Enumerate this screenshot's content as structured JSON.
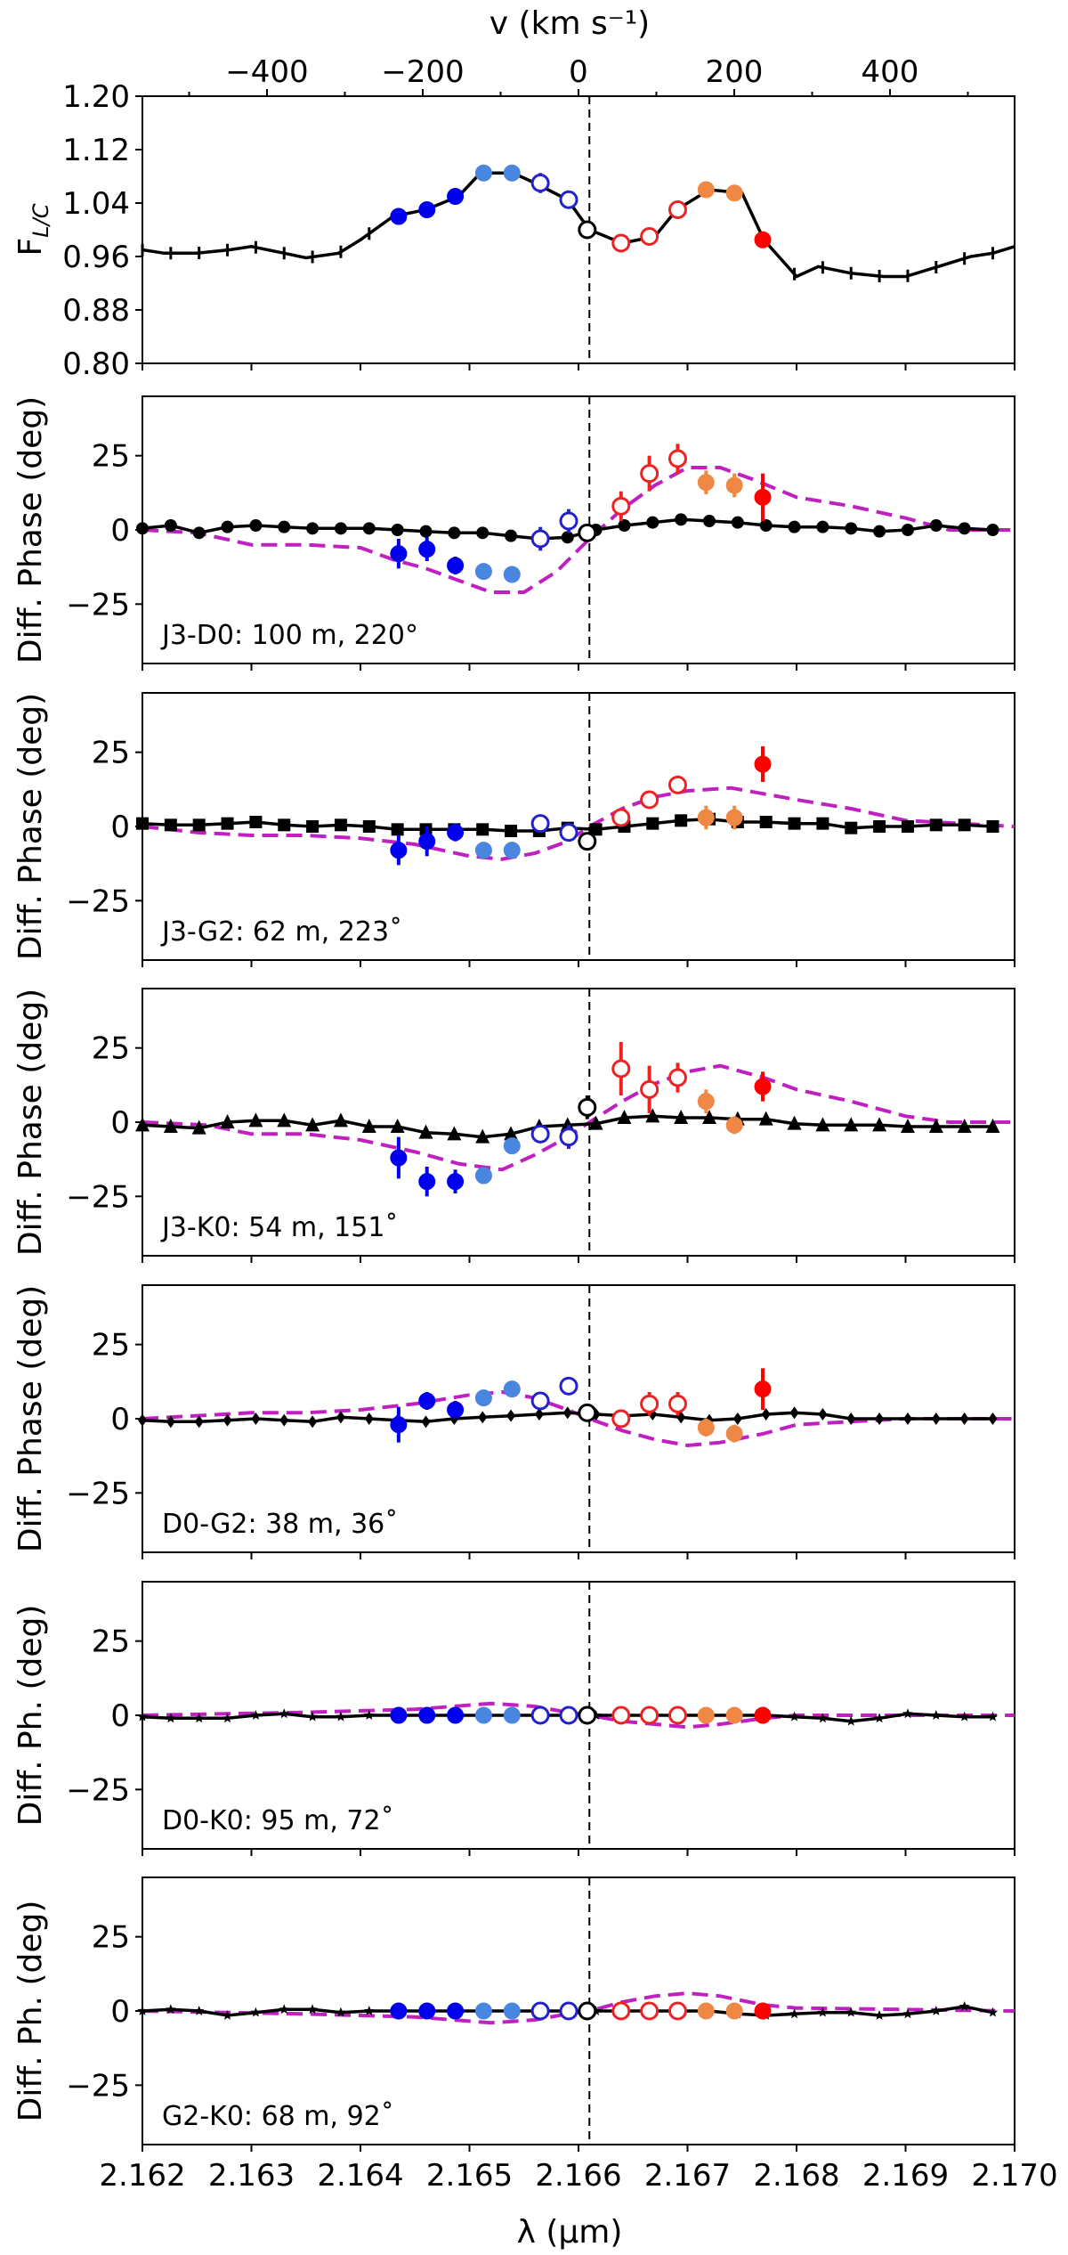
{
  "chart_data": {
    "type": "multi-panel",
    "top_axis": {
      "label": "v (km s⁻¹)",
      "range": [
        -560,
        560
      ],
      "ticks": [
        -400,
        -200,
        0,
        200,
        400
      ],
      "tick_labels": [
        "−400",
        "−200",
        "0",
        "200",
        "400"
      ]
    },
    "x_axis": {
      "label": "λ (μm)",
      "range": [
        2.162,
        2.17
      ],
      "ticks": [
        2.162,
        2.163,
        2.164,
        2.165,
        2.166,
        2.167,
        2.168,
        2.169,
        2.17
      ],
      "tick_labels": [
        "2.162",
        "2.163",
        "2.164",
        "2.165",
        "2.166",
        "2.167",
        "2.168",
        "2.169",
        "2.170"
      ]
    },
    "line_center_um": 2.1661,
    "colored_points": {
      "x": [
        2.16435,
        2.16461,
        2.16487,
        2.16513,
        2.16539,
        2.16565,
        2.16591,
        2.16608,
        2.16639,
        2.16665,
        2.16691,
        2.16717,
        2.16743,
        2.16769
      ],
      "colors": [
        "#0000ee",
        "#0000ee",
        "#0000ee",
        "#4a86e0",
        "#4a86e0",
        "#2222cc",
        "#2222cc",
        "#000000",
        "#ee2222",
        "#ee2222",
        "#ee2222",
        "#ee8844",
        "#ee8844",
        "#ff0000"
      ],
      "open": [
        false,
        false,
        false,
        false,
        false,
        true,
        true,
        true,
        true,
        true,
        true,
        false,
        false,
        false
      ]
    },
    "black_x": [
      2.162,
      2.16226,
      2.16252,
      2.16278,
      2.16304,
      2.1633,
      2.16356,
      2.16382,
      2.16408,
      2.16434,
      2.1646,
      2.16486,
      2.16512,
      2.16538,
      2.16564,
      2.1659,
      2.16616,
      2.16642,
      2.16668,
      2.16694,
      2.1672,
      2.16746,
      2.16772,
      2.16798,
      2.16824,
      2.1685,
      2.16876,
      2.16902,
      2.16928,
      2.16954,
      2.1698
    ],
    "panels": [
      {
        "type": "line",
        "ylabel": "F",
        "ylabel_sub": "L/C",
        "yrange": [
          0.8,
          1.2
        ],
        "yticks": [
          0.8,
          0.88,
          0.96,
          1.04,
          1.12,
          1.2
        ],
        "ytick_labels": [
          "0.80",
          "0.88",
          "0.96",
          "1.04",
          "1.12",
          "1.20"
        ],
        "line": [
          [
            2.162,
            0.97
          ],
          [
            2.1622,
            0.965
          ],
          [
            2.1625,
            0.965
          ],
          [
            2.1628,
            0.97
          ],
          [
            2.163,
            0.975
          ],
          [
            2.1633,
            0.965
          ],
          [
            2.1635,
            0.958
          ],
          [
            2.1638,
            0.965
          ],
          [
            2.164,
            0.985
          ],
          [
            2.1643,
            1.02
          ],
          [
            2.1646,
            1.03
          ],
          [
            2.1649,
            1.05
          ],
          [
            2.1651,
            1.085
          ],
          [
            2.1654,
            1.085
          ],
          [
            2.1656,
            1.07
          ],
          [
            2.1659,
            1.045
          ],
          [
            2.1661,
            1.0
          ],
          [
            2.1664,
            0.98
          ],
          [
            2.1667,
            0.99
          ],
          [
            2.1669,
            1.03
          ],
          [
            2.1672,
            1.06
          ],
          [
            2.1675,
            1.055
          ],
          [
            2.1677,
            0.985
          ],
          [
            2.168,
            0.93
          ],
          [
            2.1682,
            0.945
          ],
          [
            2.1685,
            0.935
          ],
          [
            2.1688,
            0.93
          ],
          [
            2.169,
            0.93
          ],
          [
            2.1693,
            0.945
          ],
          [
            2.1696,
            0.96
          ],
          [
            2.1698,
            0.965
          ],
          [
            2.17,
            0.975
          ]
        ],
        "points": [
          1.02,
          1.03,
          1.05,
          1.085,
          1.085,
          1.07,
          1.045,
          1.0,
          0.98,
          0.99,
          1.03,
          1.06,
          1.055,
          0.985
        ],
        "errors": [
          0.004,
          0.004,
          0.004,
          0.004,
          0.004,
          0.015,
          0.004,
          0.004,
          0.004,
          0.004,
          0.004,
          0.004,
          0.004,
          0.006
        ]
      },
      {
        "type": "phase",
        "ylabel": "Diff. Phase (deg)",
        "label": "J3-D0: 100 m, 220°",
        "yrange": [
          -45,
          45
        ],
        "yticks": [
          25,
          0,
          -25
        ],
        "ytick_labels": [
          "25",
          "0",
          "−25"
        ],
        "marker": "circle",
        "black": [
          0.5,
          1.5,
          -1,
          1,
          1.5,
          1,
          0.5,
          0.5,
          0.5,
          0,
          -0.5,
          -1,
          -1,
          -2,
          -3,
          -2.5,
          0,
          1.5,
          2.5,
          3.5,
          3,
          2.5,
          1.5,
          1,
          1,
          0.5,
          -0.5,
          0,
          1.5,
          0.5,
          0
        ],
        "points": [
          -8,
          -6.5,
          -12,
          -14,
          -15,
          -3,
          3,
          -1,
          8,
          19,
          24,
          16,
          15,
          11
        ],
        "errors": [
          5,
          4,
          3,
          2,
          2,
          4,
          4,
          2,
          5,
          6,
          5,
          4,
          4,
          8
        ],
        "model": [
          [
            2.162,
            0
          ],
          [
            2.1625,
            -1
          ],
          [
            2.163,
            -5
          ],
          [
            2.1635,
            -5
          ],
          [
            2.164,
            -6
          ],
          [
            2.1643,
            -10
          ],
          [
            2.1646,
            -13
          ],
          [
            2.1649,
            -17
          ],
          [
            2.1652,
            -21
          ],
          [
            2.1655,
            -21
          ],
          [
            2.1658,
            -14
          ],
          [
            2.1661,
            -3
          ],
          [
            2.1664,
            7
          ],
          [
            2.1667,
            15
          ],
          [
            2.167,
            21
          ],
          [
            2.1673,
            21
          ],
          [
            2.1676,
            17
          ],
          [
            2.168,
            11
          ],
          [
            2.1685,
            8
          ],
          [
            2.169,
            4
          ],
          [
            2.1694,
            0
          ],
          [
            2.17,
            0
          ]
        ]
      },
      {
        "type": "phase",
        "ylabel": "Diff. Phase (deg)",
        "label": "J3-G2: 62 m, 223˚",
        "yrange": [
          -45,
          45
        ],
        "yticks": [
          25,
          0,
          -25
        ],
        "ytick_labels": [
          "25",
          "0",
          "−25"
        ],
        "marker": "square",
        "black": [
          1,
          0.5,
          0.5,
          1,
          1.5,
          0.5,
          0,
          0.5,
          0,
          -1,
          -1,
          -1,
          -1,
          -1.5,
          -1.5,
          -0.5,
          -1,
          0,
          1,
          2,
          2.5,
          1.5,
          1.5,
          1,
          1,
          -0.5,
          0,
          0,
          0.5,
          0.5,
          0
        ],
        "points": [
          -8,
          -5,
          -2,
          -8,
          -8,
          1,
          -2,
          -5,
          3,
          9,
          14,
          3,
          3,
          21
        ],
        "errors": [
          5,
          5,
          3,
          2,
          2,
          2,
          3,
          3,
          3,
          3,
          3,
          4,
          4,
          6
        ],
        "model": [
          [
            2.162,
            0
          ],
          [
            2.1625,
            -2
          ],
          [
            2.163,
            -3
          ],
          [
            2.1635,
            -3
          ],
          [
            2.164,
            -4
          ],
          [
            2.1645,
            -6
          ],
          [
            2.165,
            -10
          ],
          [
            2.1653,
            -11
          ],
          [
            2.1656,
            -9
          ],
          [
            2.1659,
            -5
          ],
          [
            2.1661,
            0
          ],
          [
            2.1664,
            6
          ],
          [
            2.1667,
            10
          ],
          [
            2.167,
            12
          ],
          [
            2.1674,
            13
          ],
          [
            2.168,
            9
          ],
          [
            2.1685,
            6
          ],
          [
            2.169,
            2
          ],
          [
            2.17,
            0
          ]
        ]
      },
      {
        "type": "phase",
        "ylabel": "Diff. Phase (deg)",
        "label": "J3-K0: 54 m, 151˚",
        "yrange": [
          -45,
          45
        ],
        "yticks": [
          25,
          0,
          -25
        ],
        "ytick_labels": [
          "25",
          "0",
          "−25"
        ],
        "marker": "triangle",
        "black": [
          -1,
          -1.5,
          -2,
          0,
          0.5,
          0.5,
          -1,
          0.5,
          -1.5,
          -1.5,
          -3.5,
          -4,
          -5,
          -4,
          -1.5,
          -1,
          -0.5,
          1.5,
          2,
          1.5,
          1.5,
          1,
          1,
          -0.5,
          -1,
          -1,
          -1,
          -1.5,
          -1.5,
          -1.5,
          -1.5
        ],
        "points": [
          -12,
          -20,
          -20,
          -18,
          -8,
          -4,
          -5,
          5,
          18,
          11,
          15,
          7,
          -1,
          12
        ],
        "errors": [
          7,
          5,
          4,
          2,
          2,
          3,
          4,
          4,
          9,
          8,
          5,
          4,
          3,
          5
        ],
        "model": [
          [
            2.162,
            0
          ],
          [
            2.1626,
            -1
          ],
          [
            2.163,
            -4
          ],
          [
            2.1635,
            -4
          ],
          [
            2.164,
            -6
          ],
          [
            2.1645,
            -10
          ],
          [
            2.1649,
            -14
          ],
          [
            2.1653,
            -16
          ],
          [
            2.1656,
            -11
          ],
          [
            2.1659,
            -5
          ],
          [
            2.1661,
            0
          ],
          [
            2.1664,
            7
          ],
          [
            2.1667,
            13
          ],
          [
            2.167,
            17
          ],
          [
            2.1673,
            19
          ],
          [
            2.1677,
            15
          ],
          [
            2.168,
            11
          ],
          [
            2.1685,
            7
          ],
          [
            2.169,
            2
          ],
          [
            2.1694,
            0
          ],
          [
            2.17,
            0
          ]
        ]
      },
      {
        "type": "phase",
        "ylabel": "Diff. Phase (deg)",
        "label": "D0-G2: 38 m, 36˚",
        "yrange": [
          -45,
          45
        ],
        "yticks": [
          25,
          0,
          -25
        ],
        "ytick_labels": [
          "25",
          "0",
          "−25"
        ],
        "marker": "diamond",
        "black": [
          -0.5,
          -1,
          -1,
          -0.5,
          0,
          -0.5,
          -1,
          0.5,
          0,
          -0.5,
          -1,
          0,
          0.5,
          1,
          1.5,
          2,
          1.5,
          1,
          1.5,
          0.5,
          -0.5,
          0,
          1.5,
          2,
          1.5,
          0,
          0,
          0,
          0,
          0,
          0
        ],
        "points": [
          -2,
          6,
          3,
          7,
          10,
          6,
          11,
          2,
          0,
          5,
          5,
          -3,
          -5,
          10
        ],
        "errors": [
          6,
          3,
          3,
          2,
          2,
          3,
          3,
          3,
          3,
          4,
          4,
          3,
          3,
          7
        ],
        "model": [
          [
            2.162,
            0
          ],
          [
            2.163,
            2
          ],
          [
            2.1635,
            2
          ],
          [
            2.164,
            3
          ],
          [
            2.1645,
            5
          ],
          [
            2.165,
            8
          ],
          [
            2.1653,
            9
          ],
          [
            2.1656,
            7
          ],
          [
            2.1659,
            3
          ],
          [
            2.1661,
            0
          ],
          [
            2.1664,
            -4
          ],
          [
            2.1667,
            -7
          ],
          [
            2.167,
            -9
          ],
          [
            2.1673,
            -8
          ],
          [
            2.1677,
            -5
          ],
          [
            2.168,
            -2
          ],
          [
            2.1685,
            -1
          ],
          [
            2.169,
            0
          ],
          [
            2.17,
            0
          ]
        ]
      },
      {
        "type": "phase",
        "ylabel": "Diff. Ph. (deg)",
        "label": "D0-K0: 95 m, 72˚",
        "yrange": [
          -45,
          45
        ],
        "yticks": [
          25,
          0,
          -25
        ],
        "ytick_labels": [
          "25",
          "0",
          "−25"
        ],
        "marker": "star",
        "black": [
          -0.5,
          -1,
          -1,
          -1,
          0,
          0.5,
          -0.5,
          -0.5,
          0,
          0,
          0,
          0,
          0,
          0,
          0,
          0,
          0,
          0,
          0,
          0,
          0,
          0,
          0,
          -0.5,
          -1,
          -2,
          -1,
          0.5,
          0,
          -0.5,
          -0.5
        ],
        "points": [
          0,
          0,
          0,
          0,
          0,
          0,
          0,
          0,
          0,
          0,
          0,
          0,
          0,
          0
        ],
        "errors": [
          1,
          1,
          1,
          1,
          1,
          1,
          1,
          1,
          1,
          1,
          1,
          1,
          1,
          1
        ],
        "model": [
          [
            2.162,
            0
          ],
          [
            2.1635,
            1
          ],
          [
            2.1645,
            2
          ],
          [
            2.1652,
            4
          ],
          [
            2.1656,
            3
          ],
          [
            2.1659,
            1
          ],
          [
            2.1661,
            0
          ],
          [
            2.1664,
            -2
          ],
          [
            2.1667,
            -3
          ],
          [
            2.167,
            -4
          ],
          [
            2.1673,
            -3
          ],
          [
            2.1677,
            -1
          ],
          [
            2.168,
            0
          ],
          [
            2.17,
            0
          ]
        ]
      },
      {
        "type": "phase",
        "ylabel": "Diff. Ph. (deg)",
        "label": "G2-K0: 68 m, 92˚",
        "yrange": [
          -45,
          45
        ],
        "yticks": [
          25,
          0,
          -25
        ],
        "ytick_labels": [
          "25",
          "0",
          "−25"
        ],
        "marker": "star",
        "black": [
          0,
          0.5,
          0,
          -1.5,
          -0.5,
          0.5,
          0.5,
          -0.5,
          0,
          0,
          0,
          0,
          0,
          0,
          0,
          0,
          0,
          0,
          0,
          0,
          0,
          -1,
          -1.5,
          -1,
          -0.5,
          -0.5,
          -1.5,
          -1,
          0,
          1.5,
          -0.5
        ],
        "points": [
          0,
          0,
          0,
          0,
          0,
          0,
          0,
          0,
          0,
          0,
          0,
          0,
          0,
          0
        ],
        "errors": [
          1,
          1,
          1,
          1,
          1,
          1,
          1,
          1,
          1,
          1,
          1,
          1,
          1,
          1
        ],
        "model": [
          [
            2.162,
            0
          ],
          [
            2.1635,
            -1
          ],
          [
            2.1645,
            -2
          ],
          [
            2.1652,
            -4
          ],
          [
            2.1656,
            -3
          ],
          [
            2.1659,
            -1
          ],
          [
            2.1661,
            0
          ],
          [
            2.1664,
            3
          ],
          [
            2.1667,
            5
          ],
          [
            2.167,
            6
          ],
          [
            2.1673,
            5
          ],
          [
            2.1677,
            2
          ],
          [
            2.168,
            1
          ],
          [
            2.17,
            0
          ]
        ]
      }
    ]
  }
}
